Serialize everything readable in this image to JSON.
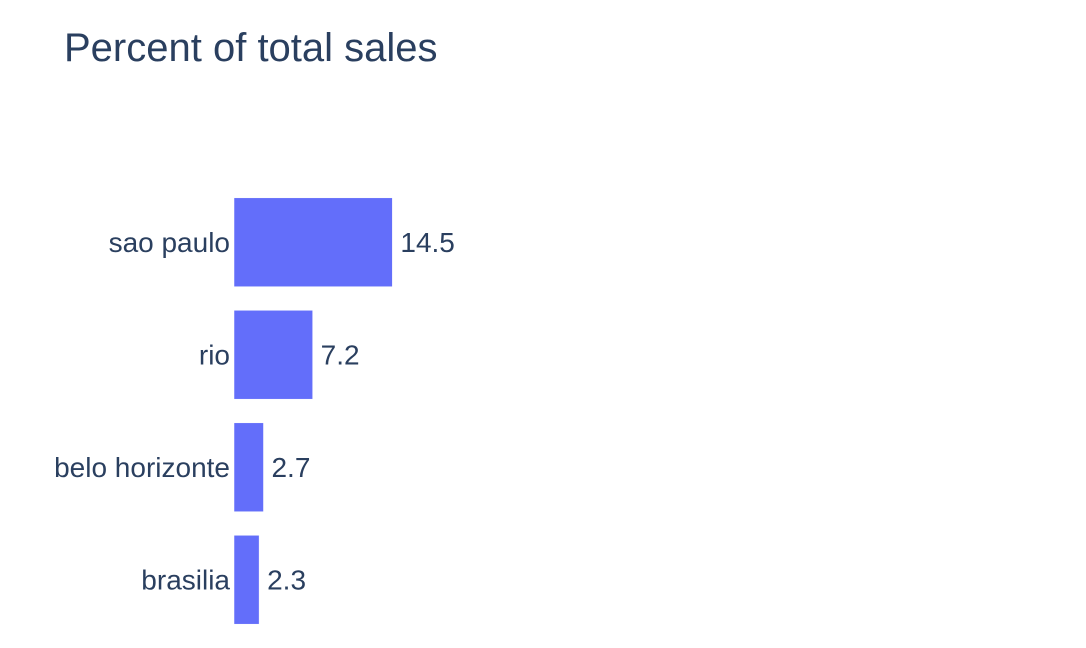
{
  "chart_data": {
    "type": "bar",
    "orientation": "horizontal",
    "title": "Percent of total sales",
    "xlabel": "",
    "ylabel": "",
    "categories": [
      "sao paulo",
      "rio",
      "belo horizonte",
      "brasilia"
    ],
    "values": [
      14.5,
      7.2,
      2.7,
      2.3
    ],
    "value_labels": [
      "14.5",
      "7.2",
      "2.7",
      "2.3"
    ],
    "xlim": [
      0,
      78
    ],
    "grid": false,
    "legend": "none",
    "bar_color": "#636efa",
    "text_color": "#2a3f5f"
  }
}
